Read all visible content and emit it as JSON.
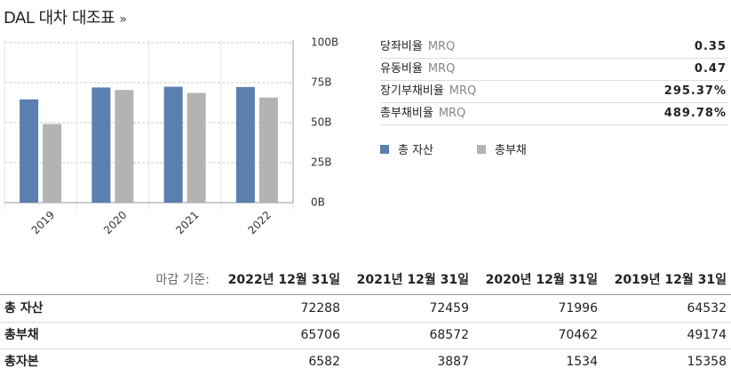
{
  "title": "DAL 대차 대조표",
  "title_link": "»",
  "chart_data": {
    "type": "bar",
    "categories": [
      "2019",
      "2020",
      "2021",
      "2022"
    ],
    "series": [
      {
        "name": "총 자산",
        "color": "#5b7fae",
        "values": [
          64.532,
          71.996,
          72.459,
          72.288
        ]
      },
      {
        "name": "총부채",
        "color": "#b3b3b3",
        "values": [
          49.174,
          70.462,
          68.572,
          65.706
        ]
      }
    ],
    "ylim": [
      0,
      100
    ],
    "yticks": [
      {
        "value": 0,
        "label": "0B"
      },
      {
        "value": 25,
        "label": "25B"
      },
      {
        "value": 50,
        "label": "50B"
      },
      {
        "value": 75,
        "label": "75B"
      },
      {
        "value": 100,
        "label": "100B"
      }
    ],
    "grid": true
  },
  "ratios": [
    {
      "label": "당좌비율",
      "period": "MRQ",
      "value": "0.35"
    },
    {
      "label": "유동비율",
      "period": "MRQ",
      "value": "0.47"
    },
    {
      "label": "장기부채비율",
      "period": "MRQ",
      "value": "295.37%"
    },
    {
      "label": "총부채비율",
      "period": "MRQ",
      "value": "489.78%"
    }
  ],
  "table": {
    "caption": "마감 기준:",
    "columns": [
      "2022년 12월 31일",
      "2021년 12월 31일",
      "2020년 12월 31일",
      "2019년 12월 31일"
    ],
    "rows": [
      {
        "label": "총 자산",
        "values": [
          72288,
          72459,
          71996,
          64532
        ]
      },
      {
        "label": "총부채",
        "values": [
          65706,
          68572,
          70462,
          49174
        ]
      },
      {
        "label": "총자본",
        "values": [
          6582,
          3887,
          1534,
          15358
        ]
      }
    ]
  }
}
